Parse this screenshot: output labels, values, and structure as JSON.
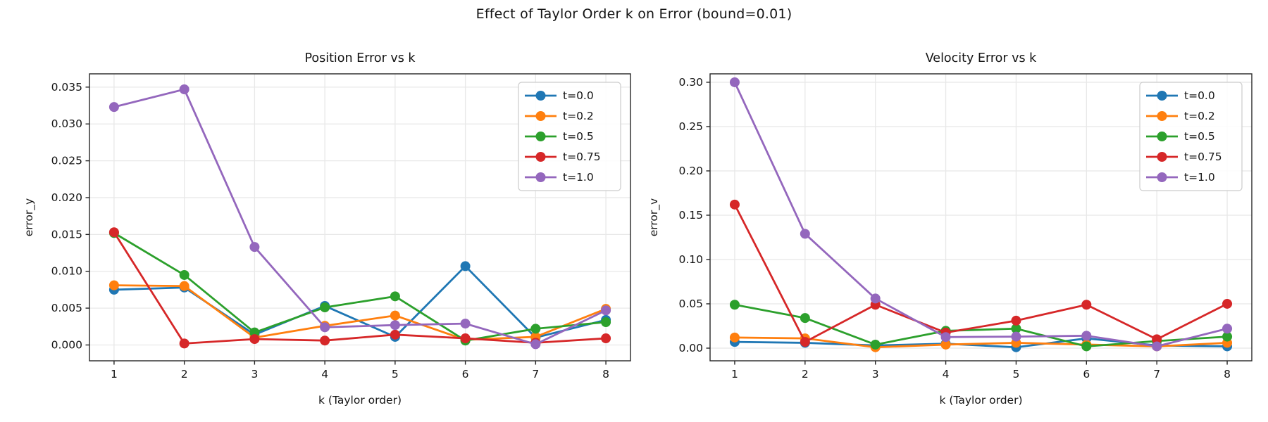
{
  "figure": {
    "suptitle": "Effect of Taylor Order k on Error (bound=0.01)"
  },
  "colors": {
    "blue": "#1f77b4",
    "orange": "#ff7f0e",
    "green": "#2ca02c",
    "red": "#d62728",
    "purple": "#9467bd",
    "grid": "#e8e8e8",
    "spine": "#262626",
    "legend_border": "#cccccc"
  },
  "chart_data": [
    {
      "type": "line",
      "title": "Position Error vs k",
      "xlabel": "k (Taylor order)",
      "ylabel": "error_y",
      "x": [
        1,
        2,
        3,
        4,
        5,
        6,
        7,
        8
      ],
      "xlim": [
        0.65,
        8.35
      ],
      "ylim": [
        -0.00215,
        0.0368
      ],
      "yticks": [
        0.0,
        0.005,
        0.01,
        0.015,
        0.02,
        0.025,
        0.03,
        0.035
      ],
      "ytick_labels": [
        "0.000",
        "0.005",
        "0.010",
        "0.015",
        "0.020",
        "0.025",
        "0.030",
        "0.035"
      ],
      "xtick_labels": [
        "1",
        "2",
        "3",
        "4",
        "5",
        "6",
        "7",
        "8"
      ],
      "grid": true,
      "legend_position": "upper right",
      "series": [
        {
          "name": "t=0.0",
          "color": "#1f77b4",
          "values": [
            0.0075,
            0.0078,
            0.0014,
            0.0053,
            0.0011,
            0.0107,
            0.001,
            0.0034
          ]
        },
        {
          "name": "t=0.2",
          "color": "#ff7f0e",
          "values": [
            0.0081,
            0.008,
            0.001,
            0.0026,
            0.004,
            0.0007,
            0.0011,
            0.0049
          ]
        },
        {
          "name": "t=0.5",
          "color": "#2ca02c",
          "values": [
            0.0152,
            0.0095,
            0.0017,
            0.0051,
            0.0066,
            0.0006,
            0.0022,
            0.0031
          ]
        },
        {
          "name": "t=0.75",
          "color": "#d62728",
          "values": [
            0.0153,
            0.0002,
            0.0008,
            0.0006,
            0.0014,
            0.0009,
            0.0003,
            0.0009
          ]
        },
        {
          "name": "t=1.0",
          "color": "#9467bd",
          "values": [
            0.0323,
            0.0347,
            0.0133,
            0.0024,
            0.0027,
            0.0029,
            0.0001,
            0.0047
          ]
        }
      ]
    },
    {
      "type": "line",
      "title": "Velocity Error vs k",
      "xlabel": "k (Taylor order)",
      "ylabel": "error_v",
      "x": [
        1,
        2,
        3,
        4,
        5,
        6,
        7,
        8
      ],
      "xlim": [
        0.65,
        8.35
      ],
      "ylim": [
        -0.0143,
        0.3095
      ],
      "yticks": [
        0.0,
        0.05,
        0.1,
        0.15,
        0.2,
        0.25,
        0.3
      ],
      "ytick_labels": [
        "0.00",
        "0.05",
        "0.10",
        "0.15",
        "0.20",
        "0.25",
        "0.30"
      ],
      "xtick_labels": [
        "1",
        "2",
        "3",
        "4",
        "5",
        "6",
        "7",
        "8"
      ],
      "grid": true,
      "legend_position": "upper right",
      "series": [
        {
          "name": "t=0.0",
          "color": "#1f77b4",
          "values": [
            0.007,
            0.006,
            0.003,
            0.005,
            0.001,
            0.011,
            0.003,
            0.002
          ]
        },
        {
          "name": "t=0.2",
          "color": "#ff7f0e",
          "values": [
            0.012,
            0.011,
            0.001,
            0.004,
            0.006,
            0.004,
            0.002,
            0.006
          ]
        },
        {
          "name": "t=0.5",
          "color": "#2ca02c",
          "values": [
            0.049,
            0.034,
            0.004,
            0.0195,
            0.022,
            0.002,
            0.008,
            0.013
          ]
        },
        {
          "name": "t=0.75",
          "color": "#d62728",
          "values": [
            0.162,
            0.007,
            0.049,
            0.0175,
            0.031,
            0.049,
            0.01,
            0.05
          ]
        },
        {
          "name": "t=1.0",
          "color": "#9467bd",
          "values": [
            0.3,
            0.129,
            0.056,
            0.0125,
            0.013,
            0.014,
            0.002,
            0.022
          ]
        }
      ]
    }
  ]
}
